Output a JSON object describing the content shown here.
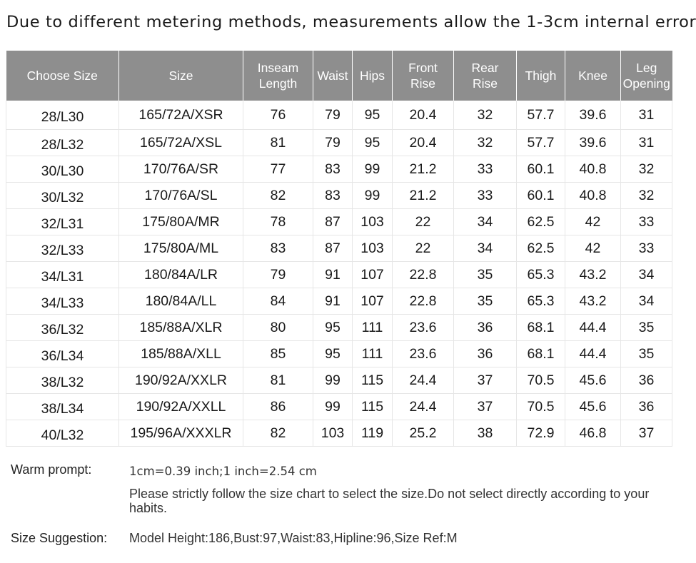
{
  "headline": "Due to different metering methods, measurements allow the 1-3cm internal error",
  "table": {
    "headers": [
      [
        "Choose Size"
      ],
      [
        "Size"
      ],
      [
        "Inseam",
        "Length"
      ],
      [
        "Waist"
      ],
      [
        "Hips"
      ],
      [
        "Front",
        "Rise"
      ],
      [
        "Rear",
        "Rise"
      ],
      [
        "Thigh"
      ],
      [
        "Knee"
      ],
      [
        "Leg",
        "Opening"
      ]
    ],
    "rows": [
      [
        "28/L30",
        "165/72A/XSR",
        "76",
        "79",
        "95",
        "20.4",
        "32",
        "57.7",
        "39.6",
        "31"
      ],
      [
        "28/L32",
        "165/72A/XSL",
        "81",
        "79",
        "95",
        "20.4",
        "32",
        "57.7",
        "39.6",
        "31"
      ],
      [
        "30/L30",
        "170/76A/SR",
        "77",
        "83",
        "99",
        "21.2",
        "33",
        "60.1",
        "40.8",
        "32"
      ],
      [
        "30/L32",
        "170/76A/SL",
        "82",
        "83",
        "99",
        "21.2",
        "33",
        "60.1",
        "40.8",
        "32"
      ],
      [
        "32/L31",
        "175/80A/MR",
        "78",
        "87",
        "103",
        "22",
        "34",
        "62.5",
        "42",
        "33"
      ],
      [
        "32/L33",
        "175/80A/ML",
        "83",
        "87",
        "103",
        "22",
        "34",
        "62.5",
        "42",
        "33"
      ],
      [
        "34/L31",
        "180/84A/LR",
        "79",
        "91",
        "107",
        "22.8",
        "35",
        "65.3",
        "43.2",
        "34"
      ],
      [
        "34/L33",
        "180/84A/LL",
        "84",
        "91",
        "107",
        "22.8",
        "35",
        "65.3",
        "43.2",
        "34"
      ],
      [
        "36/L32",
        "185/88A/XLR",
        "80",
        "95",
        "111",
        "23.6",
        "36",
        "68.1",
        "44.4",
        "35"
      ],
      [
        "36/L34",
        "185/88A/XLL",
        "85",
        "95",
        "111",
        "23.6",
        "36",
        "68.1",
        "44.4",
        "35"
      ],
      [
        "38/L32",
        "190/92A/XXLR",
        "81",
        "99",
        "115",
        "24.4",
        "37",
        "70.5",
        "45.6",
        "36"
      ],
      [
        "38/L34",
        "190/92A/XXLL",
        "86",
        "99",
        "115",
        "24.4",
        "37",
        "70.5",
        "45.6",
        "36"
      ],
      [
        "40/L32",
        "195/96A/XXXLR",
        "82",
        "103",
        "119",
        "25.2",
        "38",
        "72.9",
        "46.8",
        "37"
      ]
    ]
  },
  "notes": {
    "warm_label": "Warm prompt:",
    "warm_conversion": "1cm=0.39 inch;1 inch=2.54 cm",
    "warm_instruction": "Please strictly follow the size chart  to select the size.Do not select directly according to your habits.",
    "suggestion_label": "Size Suggestion:",
    "suggestion_value": "Model Height:186,Bust:97,Waist:83,Hipline:96,Size Ref:M"
  },
  "colors": {
    "header_bg": "#8e8e8e",
    "header_text": "#ffffff",
    "grid_line": "#e6e6e6"
  }
}
